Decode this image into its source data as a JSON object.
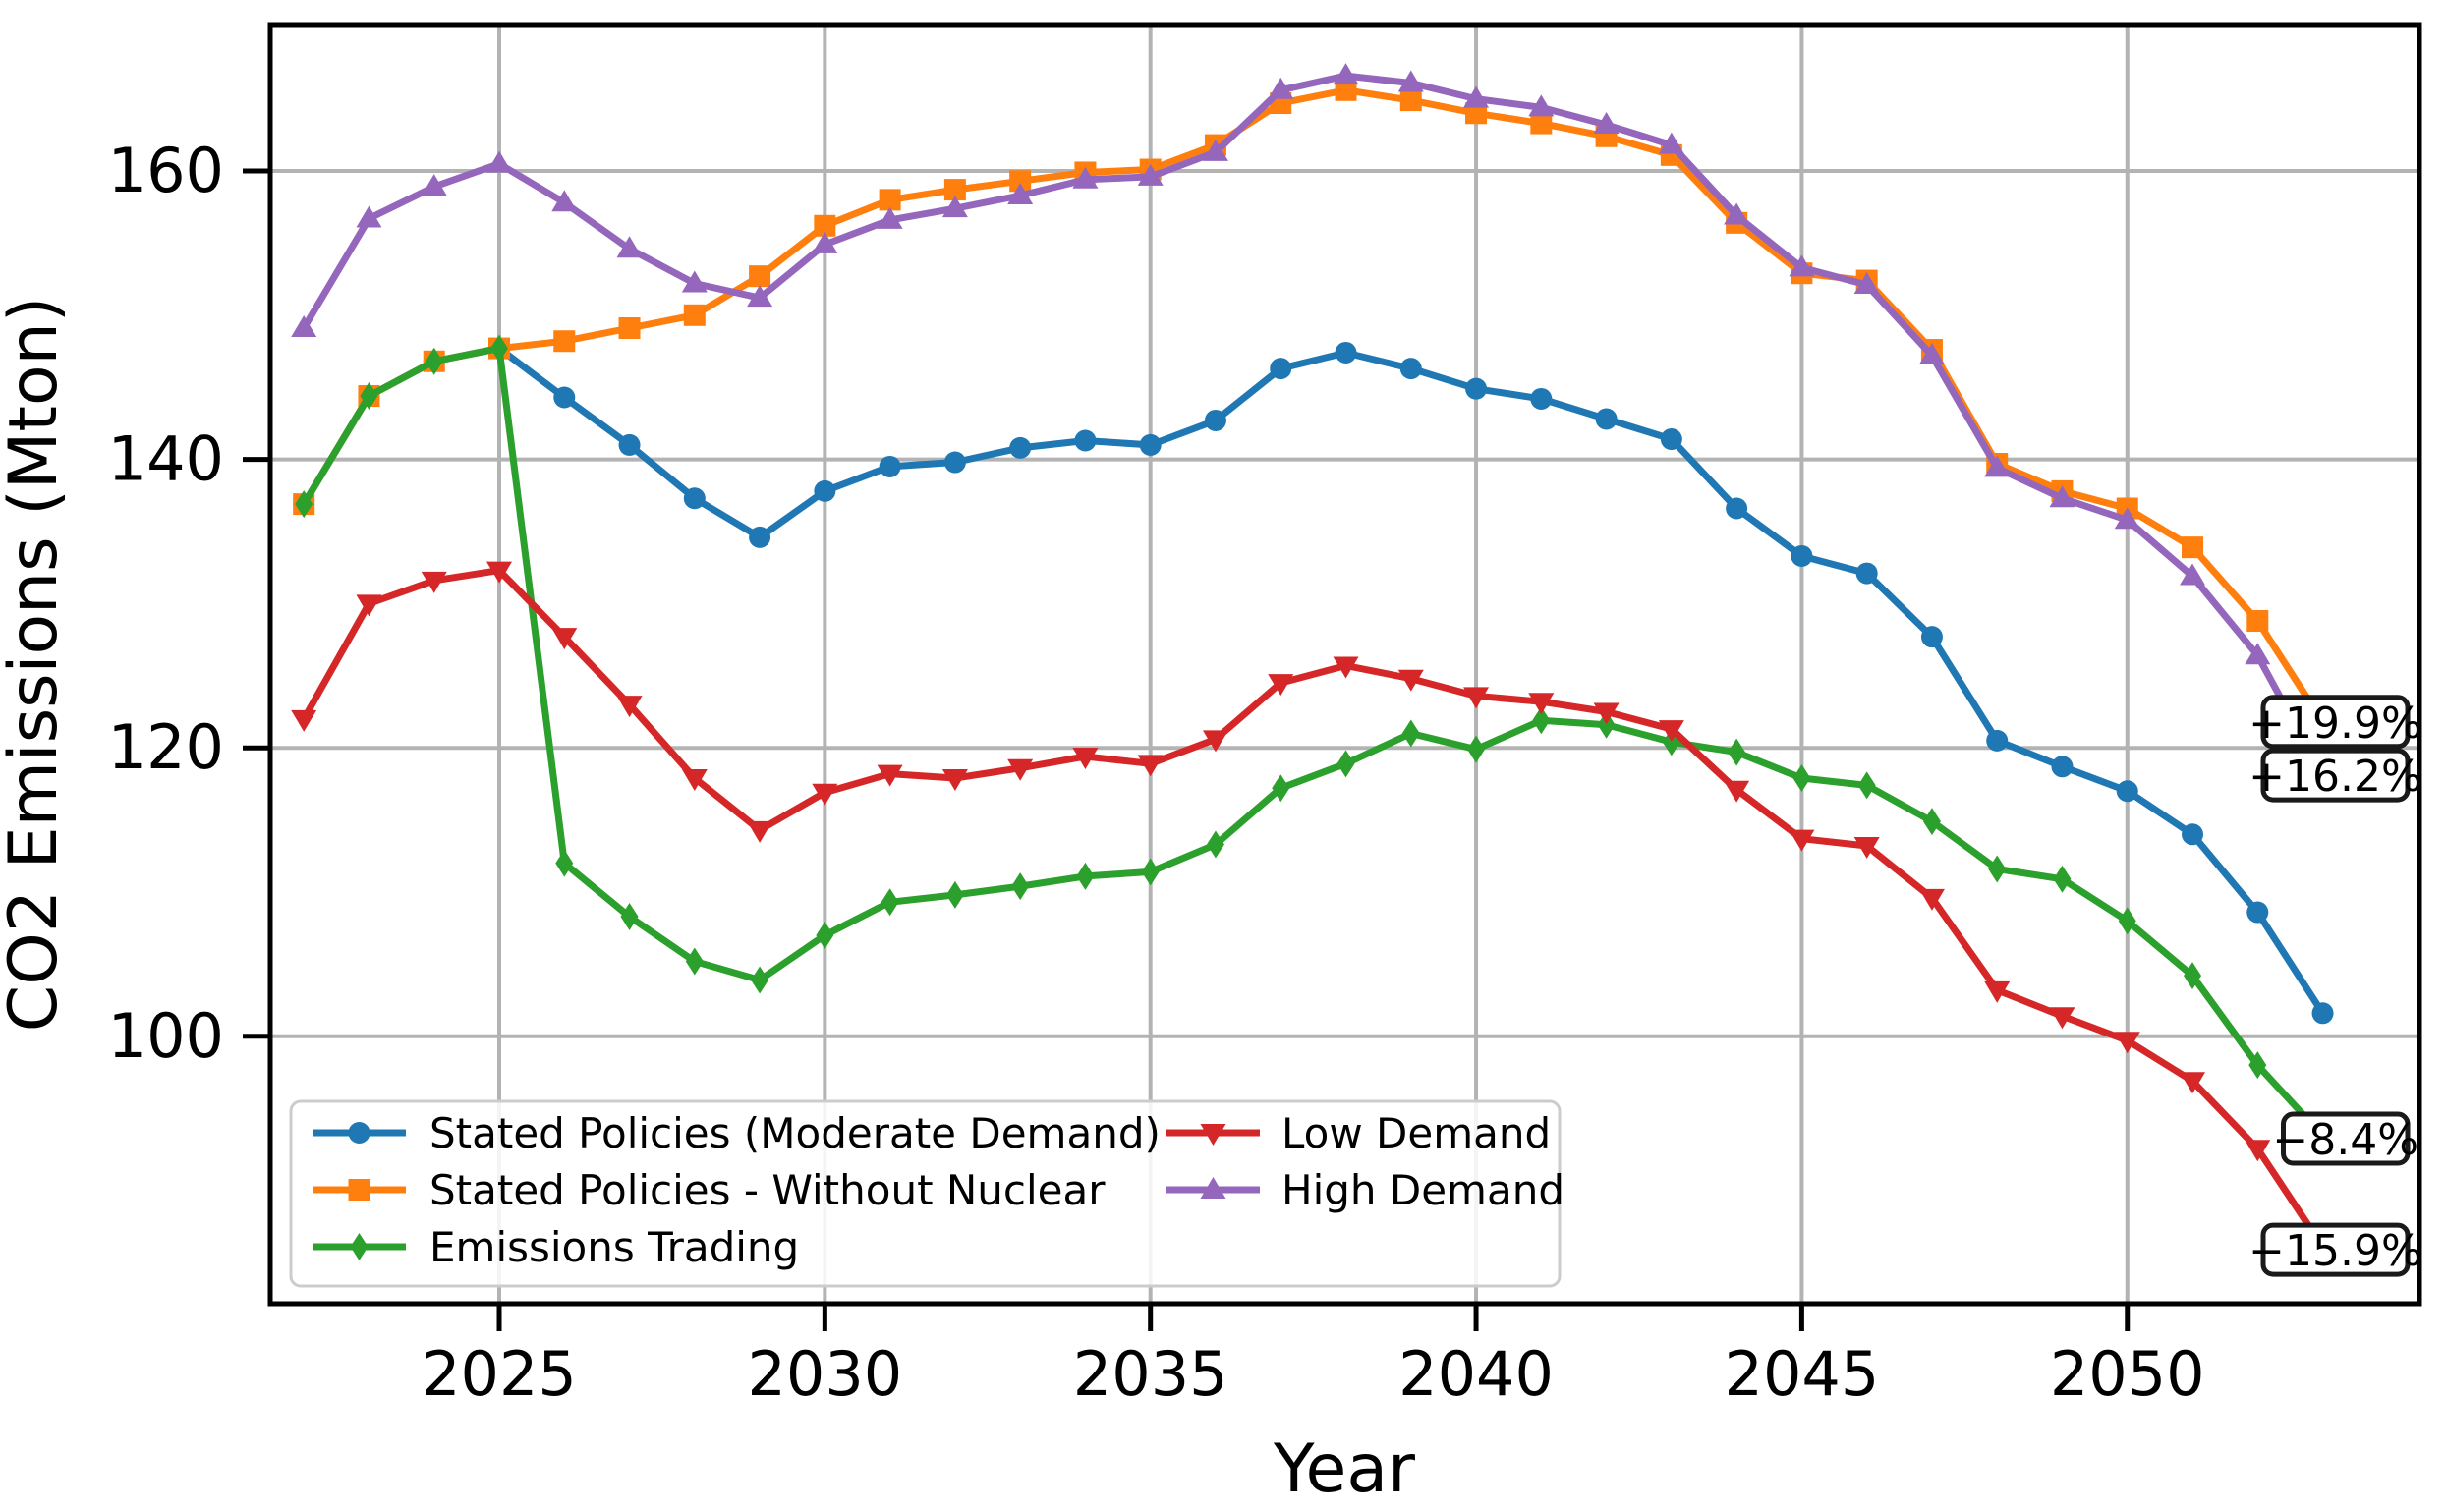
{
  "chart_data": {
    "type": "line",
    "title": "",
    "xlabel": "Year",
    "ylabel": "CO2 Emissions (Mton)",
    "grid": true,
    "legend_position": "lower-left, 2 columns",
    "x": [
      2022,
      2023,
      2024,
      2025,
      2026,
      2027,
      2028,
      2029,
      2030,
      2031,
      2032,
      2033,
      2034,
      2035,
      2036,
      2037,
      2038,
      2039,
      2040,
      2041,
      2042,
      2043,
      2044,
      2045,
      2046,
      2047,
      2048,
      2049,
      2050,
      2051,
      2052,
      2053
    ],
    "xticks": [
      2025,
      2030,
      2035,
      2040,
      2045,
      2050
    ],
    "yticks": [
      100,
      120,
      140,
      160
    ],
    "xlim": [
      2020.5,
      2054.6
    ],
    "ylim": [
      81.5,
      170.3
    ],
    "series": [
      {
        "name": "Stated Policies (Moderate Demand)",
        "color": "#1f77b4",
        "marker": "circle",
        "values": [
          136.9,
          144.4,
          146.8,
          147.7,
          144.3,
          141.0,
          137.3,
          134.6,
          137.8,
          139.5,
          139.8,
          140.8,
          141.3,
          141.0,
          142.7,
          146.3,
          147.4,
          146.3,
          144.9,
          144.2,
          142.8,
          141.4,
          136.6,
          133.3,
          132.1,
          127.7,
          120.5,
          118.7,
          117.0,
          114.0,
          108.6,
          101.6
        ]
      },
      {
        "name": "Stated Policies - Without Nuclear",
        "color": "#ff7f0e",
        "marker": "square",
        "values": [
          136.9,
          144.4,
          146.8,
          147.7,
          148.2,
          149.1,
          150.0,
          152.7,
          156.2,
          158.0,
          158.7,
          159.3,
          159.9,
          160.1,
          161.8,
          164.7,
          165.6,
          164.9,
          164.0,
          163.3,
          162.4,
          161.1,
          156.4,
          152.9,
          152.4,
          147.6,
          139.7,
          137.8,
          136.6,
          133.9,
          128.8,
          121.8
        ]
      },
      {
        "name": "Emissions Trading",
        "color": "#2ca02c",
        "marker": "diamond",
        "values": [
          136.9,
          144.4,
          146.8,
          147.7,
          112.0,
          108.3,
          105.2,
          103.9,
          107.0,
          109.3,
          109.8,
          110.4,
          111.1,
          111.4,
          113.3,
          117.2,
          118.9,
          121.0,
          119.9,
          121.9,
          121.6,
          120.4,
          119.7,
          117.9,
          117.4,
          114.9,
          111.6,
          110.9,
          108.0,
          104.2,
          98.0,
          93.1
        ]
      },
      {
        "name": "Low Demand",
        "color": "#d62728",
        "marker": "triangle-down",
        "values": [
          122.0,
          130.0,
          131.6,
          132.3,
          127.7,
          123.0,
          117.9,
          114.3,
          116.9,
          118.2,
          117.9,
          118.6,
          119.4,
          118.9,
          120.6,
          124.5,
          125.7,
          124.8,
          123.6,
          123.2,
          122.5,
          121.3,
          117.1,
          113.7,
          113.2,
          109.6,
          103.2,
          101.4,
          99.7,
          96.9,
          92.2,
          85.4
        ]
      },
      {
        "name": "High Demand",
        "color": "#9467bd",
        "marker": "triangle-up",
        "values": [
          149.1,
          156.7,
          158.9,
          160.5,
          157.8,
          154.6,
          152.2,
          151.2,
          154.9,
          156.6,
          157.4,
          158.3,
          159.4,
          159.6,
          161.3,
          165.6,
          166.6,
          166.1,
          165.0,
          164.4,
          163.2,
          161.8,
          156.9,
          153.3,
          152.1,
          147.2,
          139.4,
          137.3,
          135.8,
          131.9,
          126.4,
          118.1
        ]
      }
    ],
    "legend": {
      "columns": [
        [
          "Stated Policies (Moderate Demand)",
          "Stated Policies - Without Nuclear",
          "Emissions Trading"
        ],
        [
          "Low Demand",
          "High Demand"
        ]
      ]
    },
    "annotations": [
      {
        "text": "+19.9%",
        "series": "Stated Policies - Without Nuclear",
        "value": 121.8
      },
      {
        "text": "+16.2%",
        "series": "High Demand",
        "value": 118.1
      },
      {
        "text": "−8.4%",
        "series": "Emissions Trading",
        "value": 92.9
      },
      {
        "text": "−15.9%",
        "series": "Low Demand",
        "value": 85.2
      }
    ],
    "colors": {
      "grid": "#b3b3b3",
      "spine": "#000000",
      "annotation_border": "#1a1a1a",
      "legend_border": "#cccccc"
    }
  }
}
